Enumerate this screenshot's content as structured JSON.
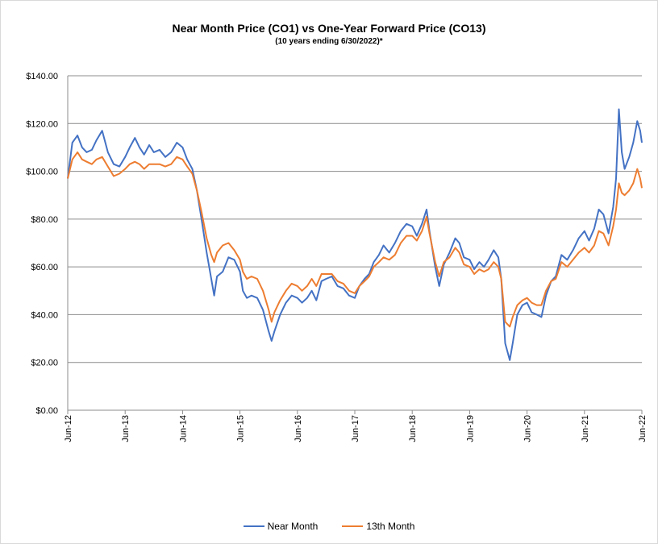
{
  "chart_data": {
    "type": "line",
    "title": "Near Month Price (CO1) vs One-Year Forward Price  (CO13)",
    "subtitle": "(10 years ending  6/30/2022)*",
    "ylim": [
      0,
      140
    ],
    "xlim": [
      2012.5,
      2022.5
    ],
    "y_ticks": [
      "$0.00",
      "$20.00",
      "$40.00",
      "$60.00",
      "$80.00",
      "$100.00",
      "$120.00",
      "$140.00"
    ],
    "x_ticks": [
      "Jun-12",
      "Jun-13",
      "Jun-14",
      "Jun-15",
      "Jun-16",
      "Jun-17",
      "Jun-18",
      "Jun-19",
      "Jun-20",
      "Jun-21",
      "Jun-22"
    ],
    "grid": "horizontal",
    "legend_position": "bottom",
    "series": [
      {
        "name": "Near Month",
        "color": "#4472c4",
        "points": [
          [
            2012.5,
            97
          ],
          [
            2012.58,
            112
          ],
          [
            2012.67,
            115
          ],
          [
            2012.75,
            110
          ],
          [
            2012.83,
            108
          ],
          [
            2012.92,
            109
          ],
          [
            2013.0,
            113
          ],
          [
            2013.1,
            117
          ],
          [
            2013.2,
            108
          ],
          [
            2013.3,
            103
          ],
          [
            2013.4,
            102
          ],
          [
            2013.5,
            106
          ],
          [
            2013.58,
            110
          ],
          [
            2013.67,
            114
          ],
          [
            2013.75,
            110
          ],
          [
            2013.83,
            107
          ],
          [
            2013.92,
            111
          ],
          [
            2014.0,
            108
          ],
          [
            2014.1,
            109
          ],
          [
            2014.2,
            106
          ],
          [
            2014.3,
            108
          ],
          [
            2014.4,
            112
          ],
          [
            2014.5,
            110
          ],
          [
            2014.58,
            105
          ],
          [
            2014.67,
            101
          ],
          [
            2014.75,
            92
          ],
          [
            2014.83,
            80
          ],
          [
            2014.92,
            66
          ],
          [
            2015.0,
            55
          ],
          [
            2015.05,
            48
          ],
          [
            2015.1,
            56
          ],
          [
            2015.2,
            58
          ],
          [
            2015.3,
            64
          ],
          [
            2015.4,
            63
          ],
          [
            2015.5,
            58
          ],
          [
            2015.55,
            50
          ],
          [
            2015.62,
            47
          ],
          [
            2015.7,
            48
          ],
          [
            2015.8,
            47
          ],
          [
            2015.9,
            42
          ],
          [
            2016.0,
            33
          ],
          [
            2016.05,
            29
          ],
          [
            2016.1,
            33
          ],
          [
            2016.2,
            40
          ],
          [
            2016.3,
            45
          ],
          [
            2016.4,
            48
          ],
          [
            2016.5,
            47
          ],
          [
            2016.58,
            45
          ],
          [
            2016.67,
            47
          ],
          [
            2016.75,
            50
          ],
          [
            2016.83,
            46
          ],
          [
            2016.92,
            54
          ],
          [
            2017.0,
            55
          ],
          [
            2017.1,
            56
          ],
          [
            2017.2,
            52
          ],
          [
            2017.3,
            51
          ],
          [
            2017.4,
            48
          ],
          [
            2017.5,
            47
          ],
          [
            2017.58,
            52
          ],
          [
            2017.67,
            55
          ],
          [
            2017.75,
            57
          ],
          [
            2017.83,
            62
          ],
          [
            2017.92,
            65
          ],
          [
            2018.0,
            69
          ],
          [
            2018.1,
            66
          ],
          [
            2018.2,
            70
          ],
          [
            2018.3,
            75
          ],
          [
            2018.4,
            78
          ],
          [
            2018.5,
            77
          ],
          [
            2018.58,
            73
          ],
          [
            2018.67,
            78
          ],
          [
            2018.75,
            84
          ],
          [
            2018.8,
            75
          ],
          [
            2018.9,
            60
          ],
          [
            2018.97,
            52
          ],
          [
            2019.05,
            61
          ],
          [
            2019.15,
            66
          ],
          [
            2019.25,
            72
          ],
          [
            2019.32,
            70
          ],
          [
            2019.4,
            64
          ],
          [
            2019.5,
            63
          ],
          [
            2019.58,
            59
          ],
          [
            2019.67,
            62
          ],
          [
            2019.75,
            60
          ],
          [
            2019.83,
            63
          ],
          [
            2019.92,
            67
          ],
          [
            2020.0,
            64
          ],
          [
            2020.05,
            55
          ],
          [
            2020.12,
            28
          ],
          [
            2020.2,
            21
          ],
          [
            2020.25,
            28
          ],
          [
            2020.33,
            40
          ],
          [
            2020.42,
            44
          ],
          [
            2020.5,
            45
          ],
          [
            2020.58,
            41
          ],
          [
            2020.67,
            40
          ],
          [
            2020.75,
            39
          ],
          [
            2020.83,
            48
          ],
          [
            2020.92,
            54
          ],
          [
            2021.0,
            56
          ],
          [
            2021.1,
            65
          ],
          [
            2021.2,
            63
          ],
          [
            2021.3,
            67
          ],
          [
            2021.4,
            72
          ],
          [
            2021.5,
            75
          ],
          [
            2021.58,
            71
          ],
          [
            2021.67,
            76
          ],
          [
            2021.75,
            84
          ],
          [
            2021.83,
            82
          ],
          [
            2021.92,
            74
          ],
          [
            2022.0,
            85
          ],
          [
            2022.05,
            97
          ],
          [
            2022.1,
            126
          ],
          [
            2022.15,
            108
          ],
          [
            2022.2,
            101
          ],
          [
            2022.28,
            106
          ],
          [
            2022.35,
            112
          ],
          [
            2022.42,
            121
          ],
          [
            2022.47,
            117
          ],
          [
            2022.5,
            112
          ]
        ]
      },
      {
        "name": "13th Month",
        "color": "#ed7d31",
        "points": [
          [
            2012.5,
            97
          ],
          [
            2012.58,
            105
          ],
          [
            2012.67,
            108
          ],
          [
            2012.75,
            105
          ],
          [
            2012.83,
            104
          ],
          [
            2012.92,
            103
          ],
          [
            2013.0,
            105
          ],
          [
            2013.1,
            106
          ],
          [
            2013.2,
            102
          ],
          [
            2013.3,
            98
          ],
          [
            2013.4,
            99
          ],
          [
            2013.5,
            101
          ],
          [
            2013.58,
            103
          ],
          [
            2013.67,
            104
          ],
          [
            2013.75,
            103
          ],
          [
            2013.83,
            101
          ],
          [
            2013.92,
            103
          ],
          [
            2014.0,
            103
          ],
          [
            2014.1,
            103
          ],
          [
            2014.2,
            102
          ],
          [
            2014.3,
            103
          ],
          [
            2014.4,
            106
          ],
          [
            2014.5,
            105
          ],
          [
            2014.58,
            102
          ],
          [
            2014.67,
            99
          ],
          [
            2014.75,
            92
          ],
          [
            2014.83,
            83
          ],
          [
            2014.92,
            72
          ],
          [
            2015.0,
            65
          ],
          [
            2015.05,
            62
          ],
          [
            2015.1,
            66
          ],
          [
            2015.2,
            69
          ],
          [
            2015.3,
            70
          ],
          [
            2015.4,
            67
          ],
          [
            2015.5,
            63
          ],
          [
            2015.55,
            58
          ],
          [
            2015.62,
            55
          ],
          [
            2015.7,
            56
          ],
          [
            2015.8,
            55
          ],
          [
            2015.9,
            50
          ],
          [
            2016.0,
            42
          ],
          [
            2016.05,
            37
          ],
          [
            2016.1,
            41
          ],
          [
            2016.2,
            46
          ],
          [
            2016.3,
            50
          ],
          [
            2016.4,
            53
          ],
          [
            2016.5,
            52
          ],
          [
            2016.58,
            50
          ],
          [
            2016.67,
            52
          ],
          [
            2016.75,
            55
          ],
          [
            2016.83,
            52
          ],
          [
            2016.92,
            57
          ],
          [
            2017.0,
            57
          ],
          [
            2017.1,
            57
          ],
          [
            2017.2,
            54
          ],
          [
            2017.3,
            53
          ],
          [
            2017.4,
            50
          ],
          [
            2017.5,
            49
          ],
          [
            2017.58,
            52
          ],
          [
            2017.67,
            54
          ],
          [
            2017.75,
            56
          ],
          [
            2017.83,
            60
          ],
          [
            2017.92,
            62
          ],
          [
            2018.0,
            64
          ],
          [
            2018.1,
            63
          ],
          [
            2018.2,
            65
          ],
          [
            2018.3,
            70
          ],
          [
            2018.4,
            73
          ],
          [
            2018.5,
            73
          ],
          [
            2018.58,
            71
          ],
          [
            2018.67,
            75
          ],
          [
            2018.75,
            81
          ],
          [
            2018.8,
            74
          ],
          [
            2018.9,
            62
          ],
          [
            2018.97,
            56
          ],
          [
            2019.05,
            62
          ],
          [
            2019.15,
            64
          ],
          [
            2019.25,
            68
          ],
          [
            2019.32,
            66
          ],
          [
            2019.4,
            61
          ],
          [
            2019.5,
            60
          ],
          [
            2019.58,
            57
          ],
          [
            2019.67,
            59
          ],
          [
            2019.75,
            58
          ],
          [
            2019.83,
            59
          ],
          [
            2019.92,
            62
          ],
          [
            2020.0,
            60
          ],
          [
            2020.05,
            55
          ],
          [
            2020.12,
            37
          ],
          [
            2020.2,
            35
          ],
          [
            2020.25,
            39
          ],
          [
            2020.33,
            44
          ],
          [
            2020.42,
            46
          ],
          [
            2020.5,
            47
          ],
          [
            2020.58,
            45
          ],
          [
            2020.67,
            44
          ],
          [
            2020.75,
            44
          ],
          [
            2020.83,
            50
          ],
          [
            2020.92,
            54
          ],
          [
            2021.0,
            55
          ],
          [
            2021.1,
            62
          ],
          [
            2021.2,
            60
          ],
          [
            2021.3,
            63
          ],
          [
            2021.4,
            66
          ],
          [
            2021.5,
            68
          ],
          [
            2021.58,
            66
          ],
          [
            2021.67,
            69
          ],
          [
            2021.75,
            75
          ],
          [
            2021.83,
            74
          ],
          [
            2021.92,
            69
          ],
          [
            2022.0,
            77
          ],
          [
            2022.05,
            84
          ],
          [
            2022.1,
            95
          ],
          [
            2022.15,
            91
          ],
          [
            2022.2,
            90
          ],
          [
            2022.28,
            92
          ],
          [
            2022.35,
            95
          ],
          [
            2022.42,
            101
          ],
          [
            2022.47,
            97
          ],
          [
            2022.5,
            93
          ]
        ]
      }
    ]
  }
}
